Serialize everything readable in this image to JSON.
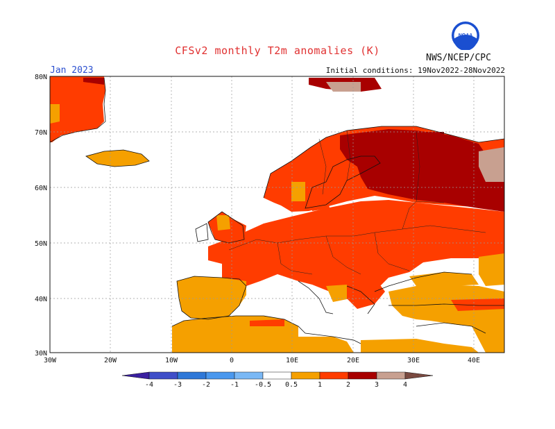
{
  "header": {
    "title": "CFSv2 monthly T2m anomalies (K)",
    "month": "Jan 2023",
    "initial_conditions": "Initial conditions: 19Nov2022-28Nov2022",
    "agency": "NWS/NCEP/CPC",
    "logo_text": "NOAA"
  },
  "axes": {
    "lat_labels": [
      "80N",
      "70N",
      "60N",
      "50N",
      "40N",
      "30N"
    ],
    "lon_labels": [
      "30W",
      "20W",
      "10W",
      "0",
      "10E",
      "20E",
      "30E",
      "40E"
    ]
  },
  "colorbar": {
    "labels": [
      "-4",
      "-3",
      "-2",
      "-1",
      "-0.5",
      "0.5",
      "1",
      "2",
      "3",
      "4"
    ],
    "colors": [
      "#3a1fa0",
      "#3f4ec8",
      "#2f78d8",
      "#4a98ee",
      "#7ab8f5",
      "#ffffff",
      "#f5a000",
      "#ff3c00",
      "#a80000",
      "#c8a090",
      "#7a4a40"
    ]
  },
  "legend_colors": {
    "anom_05_1": "#f5a000",
    "anom_1_2": "#ff3c00",
    "anom_2_3": "#a80000",
    "anom_3_4": "#c8a090",
    "anom_gt4": "#7a4a40",
    "land_outline": "#111111",
    "grid": "#999999"
  }
}
